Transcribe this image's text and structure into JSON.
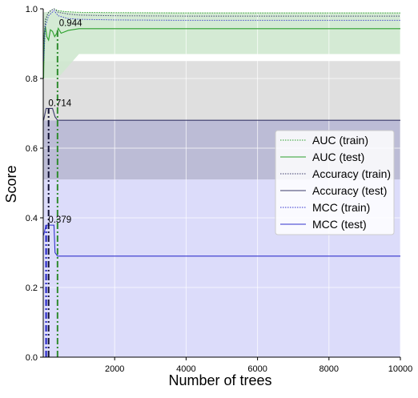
{
  "chart_data": {
    "type": "line",
    "xlabel": "Number of trees",
    "ylabel": "Score",
    "xlim": [
      0,
      10000
    ],
    "ylim": [
      0,
      1.0
    ],
    "x_ticks": [
      "2000",
      "4000",
      "6000",
      "8000",
      "10000"
    ],
    "y_ticks": [
      "0.0",
      "0.2",
      "0.4",
      "0.6",
      "0.8",
      "1.0"
    ],
    "grid": true,
    "legend_position": "center-right",
    "colors": {
      "auc": "#2ca02c",
      "accuracy": "#3a3a6a",
      "mcc": "#3333cc",
      "auc_band": "#cfe8cf",
      "acc_band": "#b5b5d2",
      "mcc_band": "#d8d8fa",
      "grey_band": "#dcdcdc",
      "vline_auc": "#2e8b2e",
      "vline_acc": "#111133",
      "vline_mcc": "#1f1fc8"
    },
    "series": [
      {
        "name": "AUC (train)",
        "style": "dotted",
        "color": "#2ca02c",
        "x": [
          10,
          60,
          120,
          200,
          300,
          420,
          600,
          1000,
          2000,
          4000,
          6000,
          8000,
          10000
        ],
        "y": [
          0.83,
          0.96,
          0.985,
          0.995,
          1.0,
          0.995,
          0.992,
          0.99,
          0.989,
          0.988,
          0.988,
          0.988,
          0.988
        ]
      },
      {
        "name": "AUC (test)",
        "style": "solid",
        "color": "#2ca02c",
        "x": [
          10,
          30,
          60,
          100,
          150,
          200,
          260,
          320,
          380,
          420,
          500,
          700,
          1000,
          2000,
          4000,
          6000,
          8000,
          10000
        ],
        "y": [
          0.8,
          0.93,
          0.95,
          0.92,
          0.91,
          0.94,
          0.935,
          0.92,
          0.93,
          0.944,
          0.93,
          0.938,
          0.943,
          0.943,
          0.943,
          0.943,
          0.943,
          0.943
        ]
      },
      {
        "name": "Accuracy (train)",
        "style": "dotted",
        "color": "#3a3a6a",
        "x": [
          10,
          60,
          150,
          300,
          420,
          700,
          1000,
          2000,
          4000,
          6000,
          8000,
          10000
        ],
        "y": [
          0.9,
          0.97,
          0.99,
          1.0,
          0.99,
          0.985,
          0.982,
          0.98,
          0.979,
          0.979,
          0.979,
          0.979
        ]
      },
      {
        "name": "Accuracy (test)",
        "style": "solid",
        "color": "#3a3a6a",
        "x": [
          10,
          80,
          120,
          180,
          260,
          330,
          400,
          500,
          1000,
          2000,
          4000,
          6000,
          8000,
          10000
        ],
        "y": [
          0.68,
          0.714,
          0.714,
          0.714,
          0.714,
          0.69,
          0.68,
          0.68,
          0.68,
          0.68,
          0.68,
          0.68,
          0.68,
          0.68
        ]
      },
      {
        "name": "MCC (train)",
        "style": "dotted",
        "color": "#3333cc",
        "x": [
          10,
          60,
          150,
          300,
          420,
          700,
          1000,
          2000,
          4000,
          6000,
          8000,
          10000
        ],
        "y": [
          0.85,
          0.95,
          0.98,
          0.995,
          0.98,
          0.972,
          0.97,
          0.968,
          0.967,
          0.967,
          0.967,
          0.967
        ]
      },
      {
        "name": "MCC (test)",
        "style": "solid",
        "color": "#3333cc",
        "x": [
          10,
          80,
          120,
          200,
          300,
          330,
          400,
          500,
          1000,
          2000,
          4000,
          6000,
          8000,
          10000
        ],
        "y": [
          0.35,
          0.379,
          0.379,
          0.379,
          0.379,
          0.3,
          0.29,
          0.29,
          0.29,
          0.29,
          0.29,
          0.29,
          0.29,
          0.29
        ]
      }
    ],
    "bands": [
      {
        "name": "mcc-band",
        "color": "#d8d8fa",
        "x": [
          10,
          10000
        ],
        "lower": [
          0.0,
          0.0
        ],
        "upper": [
          0.51,
          0.51
        ]
      },
      {
        "name": "accuracy-band",
        "color": "#b5b5d2",
        "x": [
          10,
          10000
        ],
        "lower": [
          0.51,
          0.51
        ],
        "upper": [
          0.68,
          0.68
        ]
      },
      {
        "name": "grey-band",
        "color": "#dcdcdc",
        "x": [
          10,
          10000
        ],
        "lower": [
          0.68,
          0.68
        ],
        "upper": [
          0.85,
          0.85
        ]
      },
      {
        "name": "auc-band",
        "color": "#cfe8cf",
        "x": [
          10,
          400,
          1000,
          2000,
          4000,
          6000,
          8000,
          10000
        ],
        "lower": [
          0.8,
          0.8,
          0.87,
          0.87,
          0.87,
          0.87,
          0.87,
          0.87
        ],
        "upper": [
          0.99,
          0.995,
          0.99,
          0.99,
          0.99,
          0.99,
          0.99,
          0.99
        ]
      }
    ],
    "vlines": [
      {
        "name": "vline-mcc",
        "x": 80,
        "color": "#1f1fc8",
        "top": 0.379
      },
      {
        "name": "vline-accuracy",
        "x": 150,
        "color": "#111133",
        "top": 0.714
      },
      {
        "name": "vline-auc",
        "x": 400,
        "color": "#2e8b2e",
        "top": 0.944
      }
    ],
    "annotations": [
      {
        "text": "0.944",
        "x": 420,
        "y": 0.944
      },
      {
        "text": "0.714",
        "x": 120,
        "y": 0.714
      },
      {
        "text": "0.379",
        "x": 120,
        "y": 0.379
      }
    ]
  }
}
